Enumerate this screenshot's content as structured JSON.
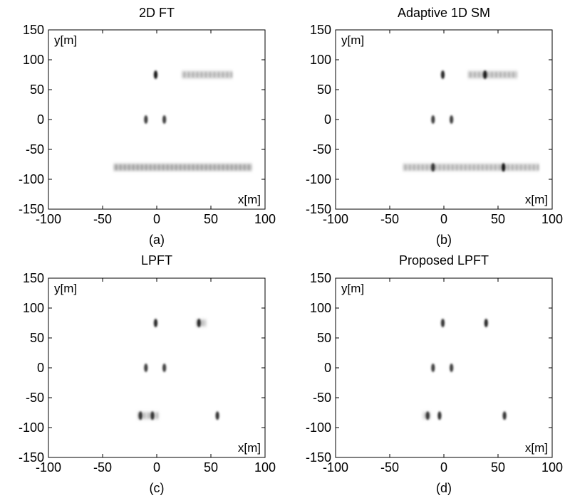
{
  "chart_data": [
    {
      "type": "heatmap",
      "title": "2D FT",
      "caption": "(a)",
      "xlabel": "x[m]",
      "ylabel": "y[m]",
      "xlim": [
        -100,
        100
      ],
      "ylim": [
        -150,
        150
      ],
      "xticks": [
        -100,
        -50,
        0,
        50,
        100
      ],
      "yticks": [
        -150,
        -100,
        -50,
        0,
        50,
        100,
        150
      ],
      "grid": false,
      "colormap": "white-to-black",
      "point_targets": [
        {
          "x": -1,
          "y": 75,
          "intensity": 0.9
        },
        {
          "x": -10,
          "y": 0,
          "intensity": 0.75
        },
        {
          "x": 7,
          "y": 0,
          "intensity": 0.75
        }
      ],
      "smeared_targets": [
        {
          "x_start": 23,
          "x_end": 70,
          "y": 75,
          "intensity": 0.35
        },
        {
          "x_start": -40,
          "x_end": 88,
          "y": -80,
          "intensity": 0.45
        }
      ]
    },
    {
      "type": "heatmap",
      "title": "Adaptive 1D SM",
      "caption": "(b)",
      "xlabel": "x[m]",
      "ylabel": "y[m]",
      "xlim": [
        -100,
        100
      ],
      "ylim": [
        -150,
        150
      ],
      "xticks": [
        -100,
        -50,
        0,
        50,
        100
      ],
      "yticks": [
        -150,
        -100,
        -50,
        0,
        50,
        100,
        150
      ],
      "grid": false,
      "colormap": "white-to-black",
      "point_targets": [
        {
          "x": -1,
          "y": 75,
          "intensity": 0.85
        },
        {
          "x": 38,
          "y": 75,
          "intensity": 0.9
        },
        {
          "x": -10,
          "y": 0,
          "intensity": 0.75
        },
        {
          "x": 7,
          "y": 0,
          "intensity": 0.75
        },
        {
          "x": -10,
          "y": -80,
          "intensity": 0.8
        },
        {
          "x": 55,
          "y": -80,
          "intensity": 0.9
        }
      ],
      "smeared_targets": [
        {
          "x_start": 22,
          "x_end": 68,
          "y": 75,
          "intensity": 0.35
        },
        {
          "x_start": -38,
          "x_end": 88,
          "y": -80,
          "intensity": 0.35
        }
      ]
    },
    {
      "type": "heatmap",
      "title": "LPFT",
      "caption": "(c)",
      "xlabel": "x[m]",
      "ylabel": "y[m]",
      "xlim": [
        -100,
        100
      ],
      "ylim": [
        -150,
        150
      ],
      "xticks": [
        -100,
        -50,
        0,
        50,
        100
      ],
      "yticks": [
        -150,
        -100,
        -50,
        0,
        50,
        100,
        150
      ],
      "grid": false,
      "colormap": "white-to-black",
      "point_targets": [
        {
          "x": -1,
          "y": 75,
          "intensity": 0.85
        },
        {
          "x": 39,
          "y": 75,
          "intensity": 0.85
        },
        {
          "x": -10,
          "y": 0,
          "intensity": 0.75
        },
        {
          "x": 7,
          "y": 0,
          "intensity": 0.75
        },
        {
          "x": -15,
          "y": -80,
          "intensity": 0.8
        },
        {
          "x": -4,
          "y": -80,
          "intensity": 0.8
        },
        {
          "x": 56,
          "y": -80,
          "intensity": 0.8
        }
      ],
      "smeared_targets": [
        {
          "x_start": 36,
          "x_end": 46,
          "y": 75,
          "intensity": 0.3
        },
        {
          "x_start": -18,
          "x_end": 2,
          "y": -80,
          "intensity": 0.3
        }
      ]
    },
    {
      "type": "heatmap",
      "title": "Proposed LPFT",
      "caption": "(d)",
      "xlabel": "x[m]",
      "ylabel": "y[m]",
      "xlim": [
        -100,
        100
      ],
      "ylim": [
        -150,
        150
      ],
      "xticks": [
        -100,
        -50,
        0,
        50,
        100
      ],
      "yticks": [
        -150,
        -100,
        -50,
        0,
        50,
        100,
        150
      ],
      "grid": false,
      "colormap": "white-to-black",
      "point_targets": [
        {
          "x": -1,
          "y": 75,
          "intensity": 0.8
        },
        {
          "x": 39,
          "y": 75,
          "intensity": 0.85
        },
        {
          "x": -10,
          "y": 0,
          "intensity": 0.75
        },
        {
          "x": 7,
          "y": 0,
          "intensity": 0.75
        },
        {
          "x": -15,
          "y": -80,
          "intensity": 0.8
        },
        {
          "x": -4,
          "y": -80,
          "intensity": 0.8
        },
        {
          "x": 56,
          "y": -80,
          "intensity": 0.8
        }
      ],
      "smeared_targets": [
        {
          "x_start": -20,
          "x_end": -12,
          "y": -80,
          "intensity": 0.2
        }
      ]
    }
  ]
}
